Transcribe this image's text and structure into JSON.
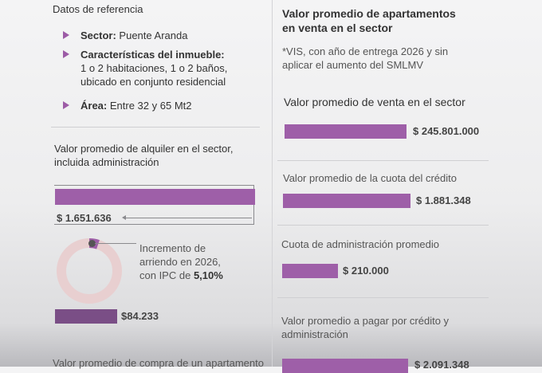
{
  "left": {
    "ref_title": "Datos de referencia",
    "items": [
      {
        "label": "Sector:",
        "text": "Puente Aranda"
      },
      {
        "label": "Características del inmueble:",
        "text_line1": "1 o 2 habitaciones, 1 o 2 baños,",
        "text_line2": "ubicado en conjunto residencial"
      },
      {
        "label": "Área:",
        "text": "Entre 32 y 65 Mt2"
      }
    ],
    "rent_title_line1": "Valor promedio de alquiler en el sector,",
    "rent_title_line2": "incluida administración",
    "rent_value": "$ 1.651.636",
    "increment_line1": "Incremento de",
    "increment_line2": "arriendo en 2026,",
    "increment_line3_prefix": "con IPC de ",
    "increment_pct": "5,10%",
    "increment_fraction": 0.051,
    "increment_value": "$84.233",
    "purchase_title": "Valor promedio de compra de un apartamento"
  },
  "right": {
    "title_line1": "Valor promedio de apartamentos",
    "title_line2": "en venta en el sector",
    "note_line1": "*VIS, con año de entrega 2026 y sin",
    "note_line2": "aplicar el aumento del SMLMV",
    "sale_label": "Valor promedio de venta en el sector",
    "sale_value": "$ 245.801.000",
    "credit_label": "Valor promedio de la cuota del crédito",
    "credit_value": "$ 1.881.348",
    "admin_label": "Cuota de administración promedio",
    "admin_value": "$ 210.000",
    "total_label_line1": "Valor promedio a pagar por crédito y",
    "total_label_line2": "administración",
    "total_value": "$ 2.091.348"
  },
  "colors": {
    "accent": "#9e5fa8",
    "dark_accent": "#7a4e86",
    "ring": "#e8cfd0"
  }
}
